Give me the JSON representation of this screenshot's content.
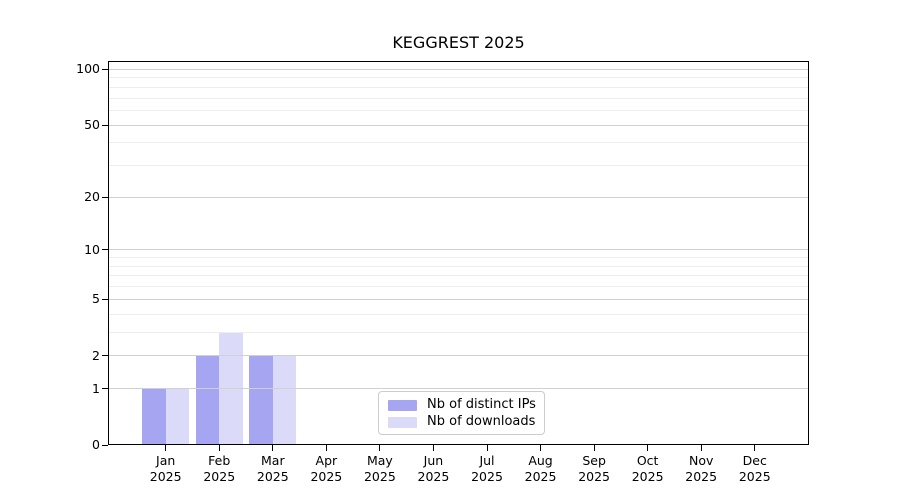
{
  "chart_data": {
    "type": "bar",
    "title": "KEGGREST 2025",
    "months": [
      "Jan",
      "Feb",
      "Mar",
      "Apr",
      "May",
      "Jun",
      "Jul",
      "Aug",
      "Sep",
      "Oct",
      "Nov",
      "Dec"
    ],
    "year_label": "2025",
    "series": [
      {
        "name": "Nb of distinct IPs",
        "color": "#a5a5f1",
        "values": [
          1,
          2,
          2,
          0,
          0,
          0,
          0,
          0,
          0,
          0,
          0,
          0
        ]
      },
      {
        "name": "Nb of downloads",
        "color": "#dbdbf9",
        "values": [
          1,
          3,
          2,
          0,
          0,
          0,
          0,
          0,
          0,
          0,
          0,
          0
        ]
      }
    ],
    "y_axis": {
      "scale": "log1p",
      "max": 111,
      "tick_values": [
        0,
        1,
        2,
        5,
        10,
        20,
        50,
        100
      ],
      "tick_labels": [
        "0",
        "1",
        "2",
        "5",
        "10",
        "20",
        "50",
        "100"
      ],
      "minor_tick_values": [
        3,
        4,
        6,
        7,
        8,
        9,
        30,
        40,
        60,
        70,
        80,
        90
      ]
    },
    "legend": {
      "position": "lower-center"
    },
    "grid": true,
    "colors": {
      "background": "#ffffff",
      "spine": "#000000",
      "major_grid": "#d0d0d0",
      "minor_grid": "#ededed",
      "text": "#000000"
    }
  }
}
